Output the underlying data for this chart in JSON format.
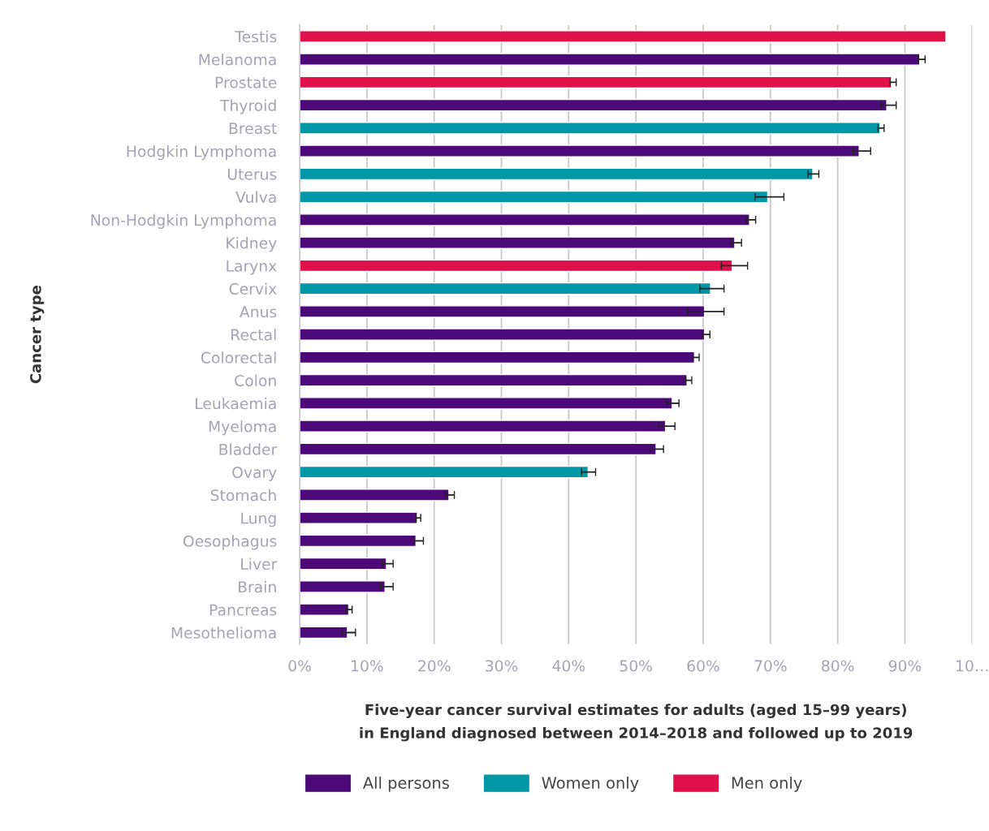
{
  "chart_data": {
    "type": "bar",
    "orientation": "horizontal",
    "xlabel": "Five-year cancer survival estimates for adults (aged 15–99 years)\nin England diagnosed between 2014–2018 and followed up to 2019",
    "ylabel": "Cancer type",
    "categories": [
      "Testis",
      "Melanoma",
      "Prostate",
      "Thyroid",
      "Breast",
      "Hodgkin Lymphoma",
      "Uterus",
      "Vulva",
      "Non-Hodgkin Lymphoma",
      "Kidney",
      "Larynx",
      "Cervix",
      "Anus",
      "Rectal",
      "Colorectal",
      "Colon",
      "Leukaemia",
      "Myeloma",
      "Bladder",
      "Ovary",
      "Stomach",
      "Lung",
      "Oesophagus",
      "Liver",
      "Brain",
      "Pancreas",
      "Mesothelioma"
    ],
    "series": [
      {
        "name": "All persons",
        "color": "#4b0a78",
        "values": [
          null,
          92.2,
          null,
          87.3,
          null,
          83.2,
          null,
          null,
          66.9,
          64.7,
          null,
          null,
          60.2,
          60.2,
          58.7,
          57.6,
          55.4,
          54.4,
          53.0,
          null,
          22.2,
          17.5,
          17.3,
          12.9,
          12.7,
          7.3,
          7.1
        ],
        "errors": [
          null,
          [
            92.0,
            93.0
          ],
          null,
          [
            86.4,
            88.7
          ],
          null,
          [
            82.3,
            84.9
          ],
          null,
          null,
          [
            66.4,
            67.8
          ],
          [
            64.1,
            65.7
          ],
          null,
          null,
          [
            57.7,
            63.1
          ],
          [
            59.9,
            61.0
          ],
          [
            58.5,
            59.4
          ],
          [
            57.4,
            58.3
          ],
          [
            54.6,
            56.4
          ],
          [
            53.4,
            55.8
          ],
          [
            52.2,
            54.1
          ],
          null,
          [
            21.6,
            23.0
          ],
          [
            17.3,
            18.0
          ],
          [
            17.0,
            18.4
          ],
          [
            12.3,
            13.9
          ],
          [
            12.0,
            13.9
          ],
          [
            6.9,
            7.8
          ],
          [
            6.3,
            8.3
          ]
        ]
      },
      {
        "name": "Women only",
        "color": "#0097a7",
        "values": [
          null,
          null,
          null,
          null,
          86.3,
          null,
          76.3,
          69.6,
          null,
          null,
          null,
          61.1,
          null,
          null,
          null,
          null,
          null,
          null,
          null,
          42.9,
          null,
          null,
          null,
          null,
          null,
          null,
          null
        ],
        "errors": [
          null,
          null,
          null,
          null,
          [
            86.0,
            86.9
          ],
          null,
          [
            75.6,
            77.2
          ],
          [
            67.7,
            72.0
          ],
          null,
          null,
          null,
          [
            59.5,
            63.1
          ],
          null,
          null,
          null,
          null,
          null,
          null,
          null,
          [
            41.9,
            44.0
          ],
          null,
          null,
          null,
          null,
          null,
          null,
          null
        ]
      },
      {
        "name": "Men only",
        "color": "#e0114a",
        "values": [
          96.1,
          null,
          88.0,
          null,
          null,
          null,
          null,
          null,
          null,
          null,
          64.3,
          null,
          null,
          null,
          null,
          null,
          null,
          null,
          null,
          null,
          null,
          null,
          null,
          null,
          null,
          null,
          null
        ],
        "errors": [
          null,
          null,
          [
            87.8,
            88.7
          ],
          null,
          null,
          null,
          null,
          null,
          null,
          null,
          [
            62.7,
            66.6
          ],
          null,
          null,
          null,
          null,
          null,
          null,
          null,
          null,
          null,
          null,
          null,
          null,
          null,
          null,
          null,
          null
        ]
      }
    ],
    "xlim": [
      0,
      100
    ],
    "xticks": [
      {
        "value": 0,
        "label": "0%"
      },
      {
        "value": 10,
        "label": "10%"
      },
      {
        "value": 20,
        "label": "20%"
      },
      {
        "value": 30,
        "label": "30%"
      },
      {
        "value": 40,
        "label": "40%"
      },
      {
        "value": 50,
        "label": "50%"
      },
      {
        "value": 60,
        "label": "60%"
      },
      {
        "value": 70,
        "label": "70%"
      },
      {
        "value": 80,
        "label": "80%"
      },
      {
        "value": 90,
        "label": "90%"
      },
      {
        "value": 100,
        "label": "10…"
      }
    ],
    "grid": "x",
    "legend": "bottom"
  }
}
